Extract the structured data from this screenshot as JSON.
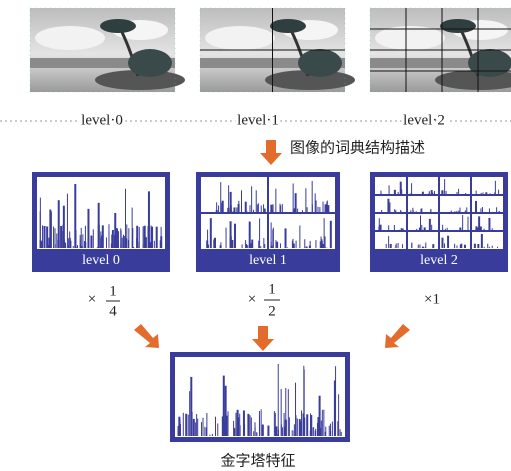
{
  "top_labels": [
    "level·0",
    "level·1",
    "level·2"
  ],
  "caption": "图像的词典结构描述",
  "box_labels": [
    "level 0",
    "level 1",
    "level 2"
  ],
  "weights": [
    {
      "sign": "×",
      "num": "1",
      "den": "4"
    },
    {
      "sign": "×",
      "num": "1",
      "den": "2"
    },
    {
      "text": "×1"
    }
  ],
  "result_label": "金字塔特征"
}
